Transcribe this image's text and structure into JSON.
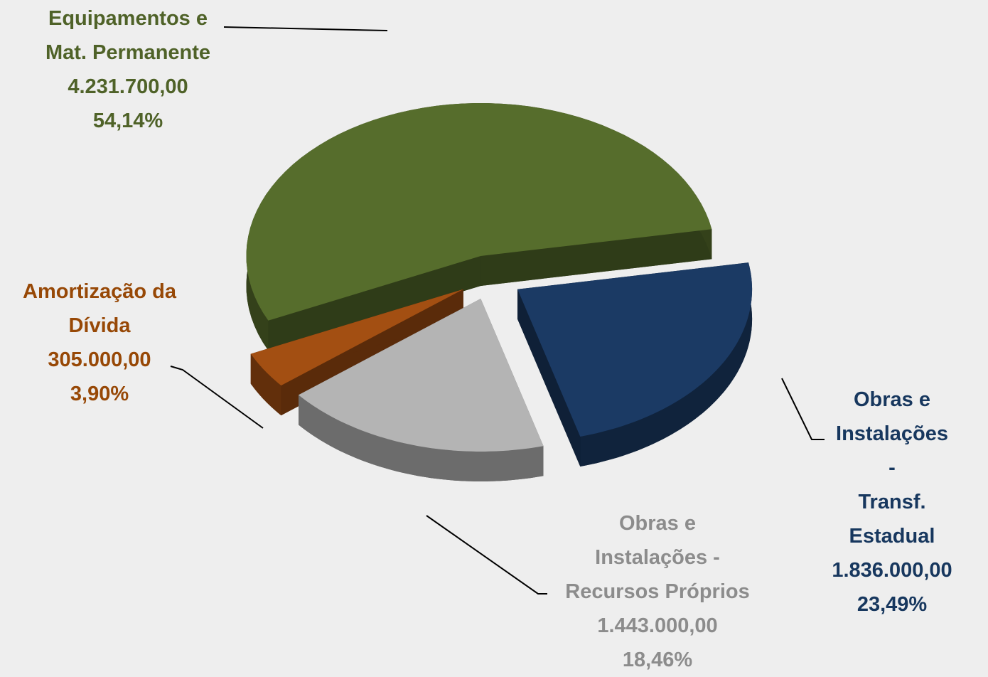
{
  "chart_data": {
    "type": "pie",
    "categories": [
      "Equipamentos e\nMat. Permanente",
      "Obras e\nInstalações -\nTransf. Estadual",
      "Obras e\nInstalações -\nRecursos Próprios",
      "Amortização da\nDívida"
    ],
    "values": [
      4231700,
      1836000,
      1443000,
      305000
    ],
    "value_labels": [
      "4.231.700,00",
      "1.836.000,00",
      "1.443.000,00",
      "305.000,00"
    ],
    "percentages": [
      54.14,
      23.49,
      18.46,
      3.9
    ],
    "percentage_labels": [
      "54,14%",
      "23,49%",
      "18,46%",
      "3,90%"
    ],
    "colors": [
      "#566d2c",
      "#1b3a64",
      "#b4b4b4",
      "#a34f12"
    ],
    "label_colors": [
      "#4f6228",
      "#17375e",
      "#8c8c8c",
      "#974806"
    ]
  }
}
